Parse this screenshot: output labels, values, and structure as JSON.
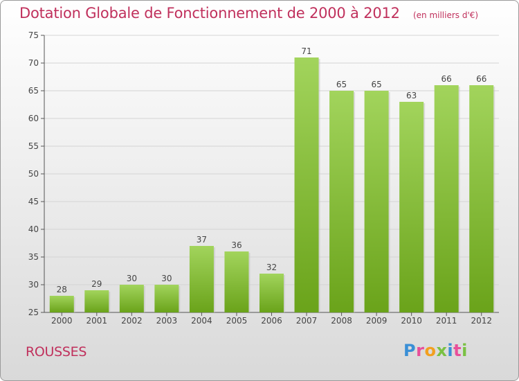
{
  "header": {
    "title": "Dotation Globale de Fonctionnement de 2000 à 2012",
    "unit": "(en milliers d'€)"
  },
  "footer": {
    "commune": "ROUSSES",
    "logo": "Proxiti"
  },
  "colors": {
    "title": "#c0305c",
    "bar_light": "#a2d45c",
    "bar_dark": "#6aa31a",
    "logo_letters": [
      "#3a8fd6",
      "#e84f9a",
      "#f2a020",
      "#7ac143",
      "#3a8fd6",
      "#e84f9a",
      "#7ac143"
    ]
  },
  "chart_data": {
    "type": "bar",
    "title": "Dotation Globale de Fonctionnement de 2000 à 2012",
    "categories": [
      "2000",
      "2001",
      "2002",
      "2003",
      "2004",
      "2005",
      "2006",
      "2007",
      "2008",
      "2009",
      "2010",
      "2011",
      "2012"
    ],
    "values": [
      28,
      29,
      30,
      30,
      37,
      36,
      32,
      71,
      65,
      65,
      63,
      66,
      66
    ],
    "ylim": [
      25,
      75
    ],
    "yticks": [
      25,
      30,
      35,
      40,
      45,
      50,
      55,
      60,
      65,
      70,
      75
    ],
    "grid": true,
    "xlabel": "",
    "ylabel": ""
  }
}
